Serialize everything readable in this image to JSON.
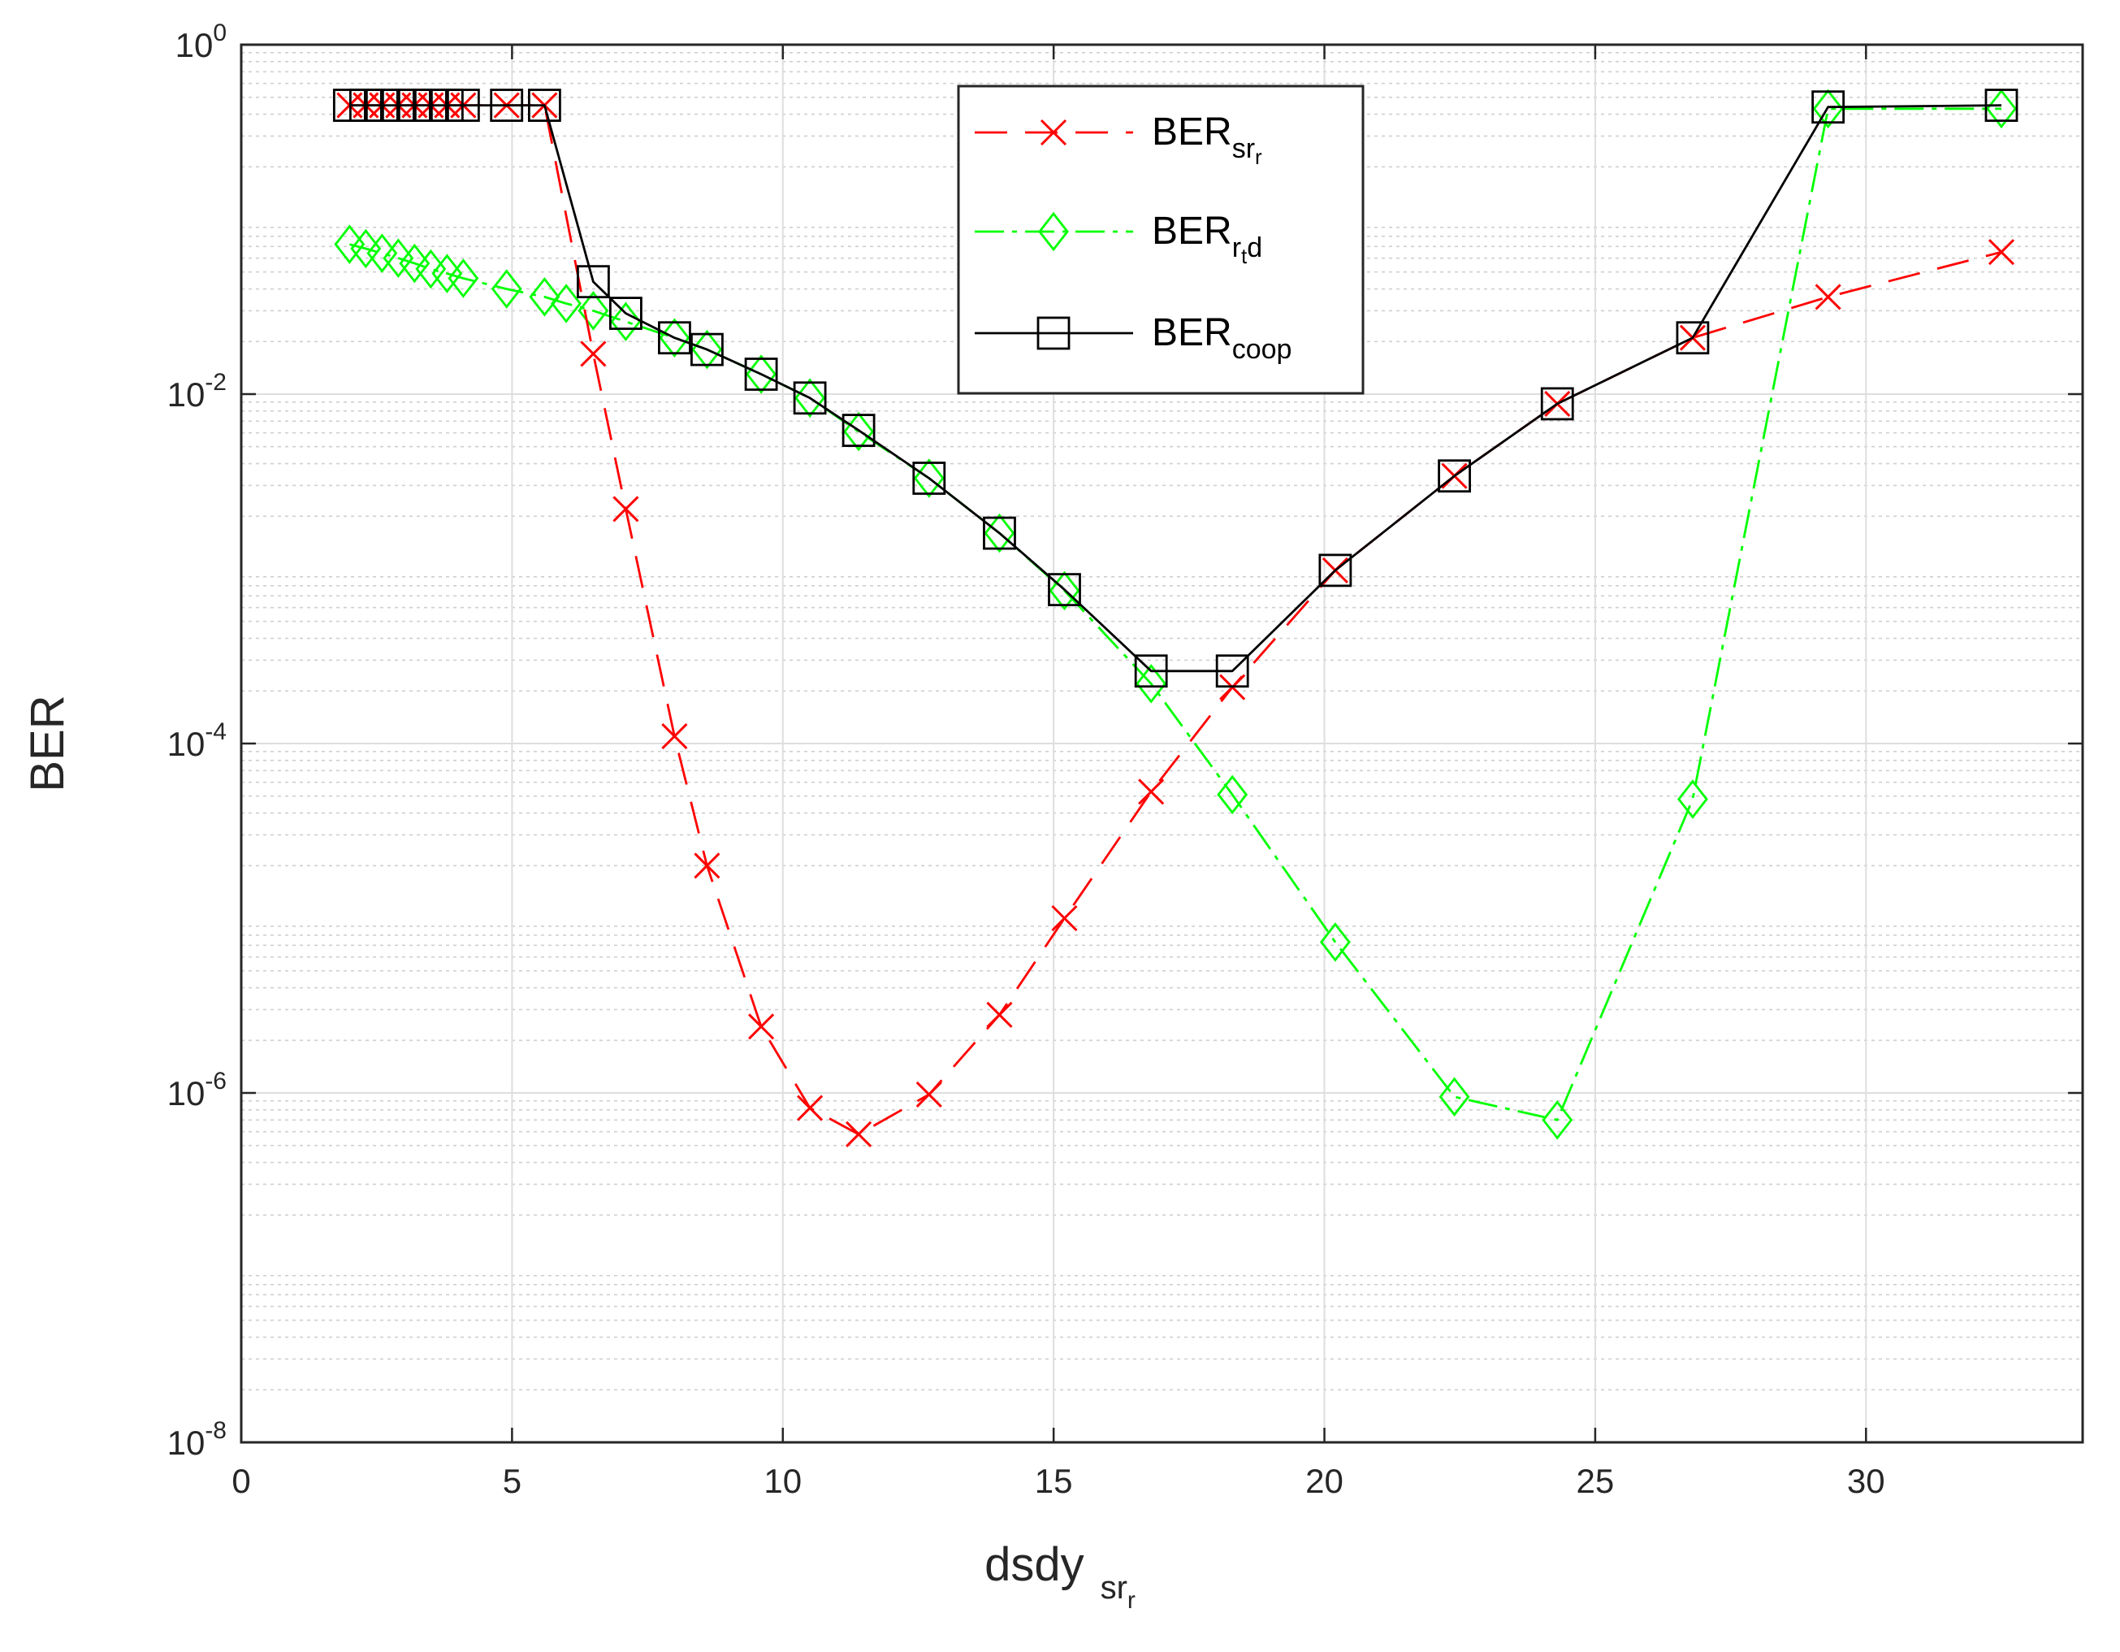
{
  "chart_data": {
    "type": "line",
    "x_scale": "linear",
    "y_scale": "log",
    "xlim": [
      0,
      34
    ],
    "ylim": [
      1e-08,
      1
    ],
    "grid": true,
    "minor_grid": true,
    "legend_position": "top-center",
    "xlabel": {
      "main": "dsdy",
      "sub": "sr",
      "subsub": "r"
    },
    "ylabel": "BER",
    "x_ticks": [
      "0",
      "5",
      "10",
      "15",
      "20",
      "25",
      "30"
    ],
    "y_ticks": [
      {
        "base": "10",
        "exp": "0"
      },
      {
        "base": "10",
        "exp": "-2"
      },
      {
        "base": "10",
        "exp": "-4"
      },
      {
        "base": "10",
        "exp": "-6"
      },
      {
        "base": "10",
        "exp": "-8"
      }
    ],
    "series": [
      {
        "name": "BER_srr",
        "legend": {
          "main": "BER",
          "sub": "sr",
          "subsub": "r"
        },
        "color": "#ff0000",
        "dash": "40,22",
        "marker": "x",
        "x": [
          2,
          2.3,
          2.6,
          2.9,
          3.2,
          3.5,
          3.8,
          4.1,
          4.9,
          5.6,
          6.5,
          7.1,
          8.0,
          8.6,
          9.6,
          10.5,
          11.4,
          12.7,
          14.0,
          15.2,
          16.8,
          18.3,
          20.2,
          22.4,
          24.3,
          26.8,
          29.3,
          32.5
        ],
        "y": [
          0.45,
          0.45,
          0.45,
          0.45,
          0.45,
          0.45,
          0.45,
          0.45,
          0.45,
          0.45,
          0.017,
          0.0022,
          0.00011,
          2e-05,
          2.4e-06,
          8.2e-07,
          5.8e-07,
          9.8e-07,
          2.8e-06,
          1e-05,
          5.3e-05,
          0.00021,
          0.00098,
          0.0034,
          0.0088,
          0.021,
          0.036,
          0.065
        ]
      },
      {
        "name": "BER_rtd",
        "legend": {
          "main": "BER",
          "sub": "r",
          "subsub": "t",
          "tail": "d"
        },
        "color": "#00ff00",
        "dash": "36,10,6,10",
        "marker": "diamond",
        "x": [
          2,
          2.3,
          2.6,
          2.9,
          3.2,
          3.5,
          3.8,
          4.1,
          4.9,
          5.6,
          6.0,
          6.5,
          7.1,
          8.0,
          8.6,
          9.6,
          10.5,
          11.4,
          12.7,
          14.0,
          15.2,
          16.8,
          18.3,
          20.2,
          22.4,
          24.3,
          26.8,
          29.3,
          32.5
        ],
        "y": [
          0.072,
          0.068,
          0.064,
          0.06,
          0.056,
          0.052,
          0.049,
          0.046,
          0.04,
          0.036,
          0.033,
          0.03,
          0.026,
          0.021,
          0.018,
          0.013,
          0.0095,
          0.0061,
          0.0033,
          0.0016,
          0.00075,
          0.00022,
          5.1e-05,
          7.3e-06,
          9.5e-07,
          7e-07,
          4.8e-05,
          0.43,
          0.43
        ]
      },
      {
        "name": "BER_coop",
        "legend": {
          "main": "BER",
          "sub": "coop"
        },
        "color": "#000000",
        "dash": "",
        "marker": "square",
        "x": [
          2,
          2.3,
          2.6,
          2.9,
          3.2,
          3.5,
          3.8,
          4.1,
          4.9,
          5.6,
          6.5,
          7.1,
          8.0,
          8.6,
          9.6,
          10.5,
          11.4,
          12.7,
          14.0,
          15.2,
          16.8,
          18.3,
          20.2,
          22.4,
          24.3,
          26.8,
          29.3,
          32.5
        ],
        "y": [
          0.45,
          0.45,
          0.45,
          0.45,
          0.45,
          0.45,
          0.45,
          0.45,
          0.45,
          0.45,
          0.044,
          0.029,
          0.021,
          0.018,
          0.013,
          0.0095,
          0.0062,
          0.0033,
          0.0016,
          0.00076,
          0.00026,
          0.00026,
          0.00098,
          0.0034,
          0.0088,
          0.021,
          0.44,
          0.45
        ]
      }
    ]
  }
}
